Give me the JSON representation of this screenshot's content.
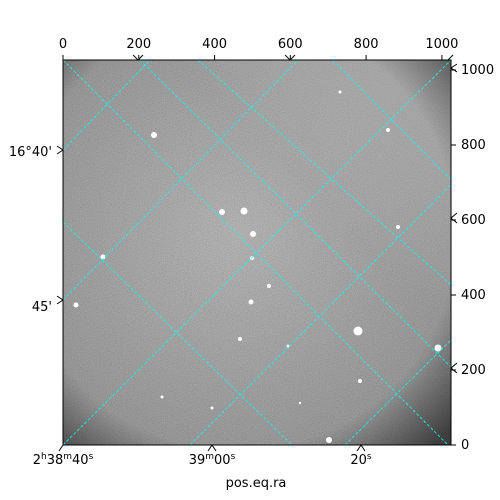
{
  "figure": {
    "xlabel": "pos.eq.ra",
    "pixel_axis_top_ticks": [
      "0",
      "200",
      "400",
      "600",
      "800",
      "1000"
    ],
    "pixel_axis_right_ticks": [
      "0",
      "200",
      "400",
      "600",
      "800",
      "1000"
    ],
    "ra_ticks": [
      {
        "h": "2",
        "hsup": "h",
        "m": "38",
        "msup": "m",
        "s": "40",
        "ssup": "s"
      },
      {
        "m": "39",
        "msup": "m",
        "s": "00",
        "ssup": "s"
      },
      {
        "s": "20",
        "ssup": "s"
      }
    ],
    "dec_ticks": [
      "16°40'",
      "45'"
    ],
    "colors": {
      "grid": "#00ffff",
      "background": "#ffffff",
      "frame": "#000000"
    }
  },
  "chart_data": {
    "type": "image",
    "pixel_range": [
      0,
      1024
    ],
    "pixel_ticks": [
      0,
      200,
      400,
      600,
      800,
      1000
    ],
    "world_grid": {
      "ra_labels": [
        "2h38m40s",
        "39m00s",
        "20s"
      ],
      "dec_labels": [
        "16°40'",
        "45'"
      ],
      "color": "#00ffff",
      "style": "dashed"
    },
    "grid": true
  }
}
